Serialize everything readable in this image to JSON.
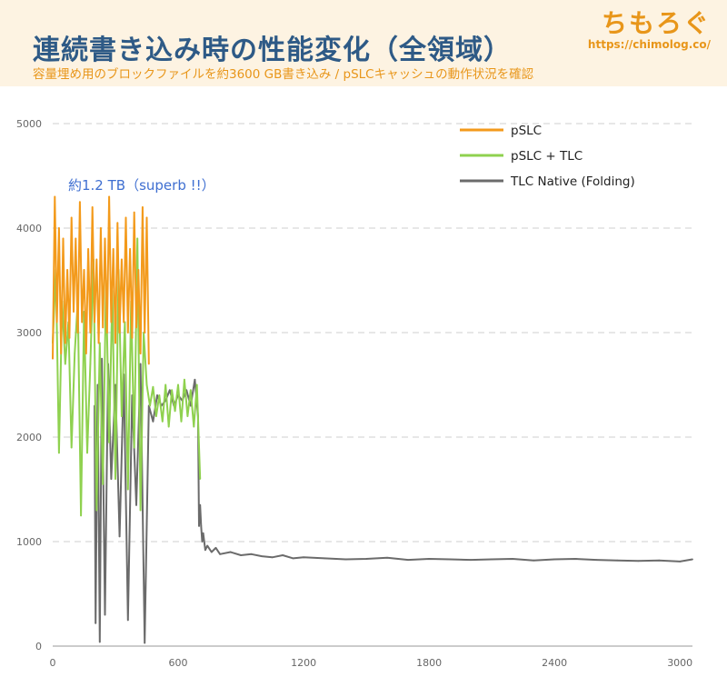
{
  "header": {
    "title": "連続書き込み時の性能変化（全領域）",
    "subtitle": "容量埋め用のブロックファイルを約3600 GB書き込み / pSLCキャッシュの動作状況を確認"
  },
  "logo": {
    "name": "ちもろぐ",
    "url": "https://chimolog.co/"
  },
  "annotation": "約1.2 TB（superb !!）",
  "colors": {
    "background": "#fdf3e2",
    "plot_bg": "#ffffff",
    "title": "#2e5a86",
    "accent": "#e8961a",
    "pslc": "#f39a1b",
    "pslc_tlc": "#8fd14f",
    "native": "#6b6b6b",
    "annotation": "#3f6fd1"
  },
  "chart_data": {
    "type": "line",
    "title": "",
    "xlabel": "",
    "ylabel": "",
    "xlim": [
      0,
      3060
    ],
    "ylim": [
      0,
      5200
    ],
    "x_ticks": [
      0,
      600,
      1200,
      1800,
      2400,
      3000
    ],
    "y_ticks": [
      0,
      1000,
      2000,
      3000,
      4000,
      5000
    ],
    "grid": "horizontal dashed",
    "legend_position": "top-right",
    "series": [
      {
        "name": "pSLC",
        "color": "#f39a1b",
        "x": [
          0,
          10,
          20,
          30,
          40,
          50,
          60,
          70,
          80,
          90,
          100,
          110,
          120,
          130,
          140,
          150,
          160,
          170,
          180,
          190,
          200,
          210,
          220,
          230,
          240,
          250,
          260,
          270,
          280,
          290,
          300,
          310,
          320,
          330,
          340,
          350,
          360,
          370,
          380,
          390,
          400,
          410,
          420,
          430,
          440,
          450,
          460
        ],
        "y": [
          2750,
          4300,
          3100,
          4000,
          2800,
          3900,
          2900,
          3600,
          2950,
          4100,
          3200,
          3900,
          3000,
          4250,
          3100,
          3600,
          2800,
          3800,
          3000,
          4200,
          3100,
          3700,
          2900,
          4000,
          3050,
          3900,
          3000,
          4300,
          3100,
          3800,
          2900,
          4050,
          3000,
          3700,
          3100,
          4100,
          3000,
          3800,
          2950,
          4150,
          3050,
          3600,
          2800,
          4200,
          3000,
          4100,
          2700
        ]
      },
      {
        "name": "pSLC + TLC",
        "color": "#8fd14f",
        "x": [
          0,
          15,
          30,
          45,
          60,
          75,
          90,
          105,
          120,
          135,
          150,
          165,
          180,
          195,
          210,
          225,
          240,
          255,
          270,
          285,
          300,
          315,
          330,
          345,
          360,
          375,
          390,
          405,
          420,
          435,
          450,
          465,
          480,
          495,
          510,
          525,
          540,
          555,
          570,
          585,
          600,
          615,
          630,
          645,
          660,
          675,
          690,
          705
        ],
        "y": [
          2900,
          3600,
          1850,
          3300,
          2700,
          3100,
          1900,
          2800,
          3300,
          1250,
          3200,
          1850,
          2700,
          3700,
          1300,
          2900,
          1550,
          3500,
          1950,
          3400,
          1600,
          3600,
          2200,
          3100,
          1500,
          3300,
          1900,
          3900,
          1300,
          3000,
          2500,
          2300,
          2480,
          2200,
          2400,
          2150,
          2500,
          2100,
          2450,
          2250,
          2500,
          2150,
          2550,
          2200,
          2450,
          2100,
          2500,
          1600
        ]
      },
      {
        "name": "TLC Native (Folding)",
        "color": "#6b6b6b",
        "x": [
          0,
          200,
          205,
          215,
          225,
          235,
          250,
          265,
          280,
          300,
          320,
          340,
          360,
          380,
          400,
          420,
          440,
          460,
          480,
          500,
          520,
          540,
          560,
          580,
          600,
          620,
          640,
          660,
          680,
          695,
          700,
          705,
          710,
          715,
          720,
          730,
          740,
          760,
          780,
          800,
          850,
          900,
          950,
          1000,
          1050,
          1100,
          1150,
          1200,
          1300,
          1400,
          1500,
          1600,
          1700,
          1800,
          1900,
          2000,
          2100,
          2200,
          2300,
          2400,
          2500,
          2600,
          2700,
          2800,
          2900,
          3000,
          3060
        ],
        "y": [
          null,
          2300,
          220,
          2500,
          40,
          2750,
          300,
          2700,
          1600,
          2500,
          1050,
          2600,
          250,
          2400,
          1350,
          2700,
          30,
          2300,
          2150,
          2400,
          2300,
          2350,
          2450,
          2300,
          2400,
          2350,
          2450,
          2300,
          2550,
          2200,
          1150,
          1350,
          1150,
          1000,
          1080,
          920,
          960,
          900,
          940,
          880,
          900,
          870,
          880,
          860,
          850,
          870,
          840,
          850,
          840,
          830,
          835,
          845,
          825,
          835,
          830,
          825,
          830,
          835,
          820,
          830,
          835,
          825,
          820,
          815,
          820,
          810,
          830
        ]
      }
    ]
  }
}
